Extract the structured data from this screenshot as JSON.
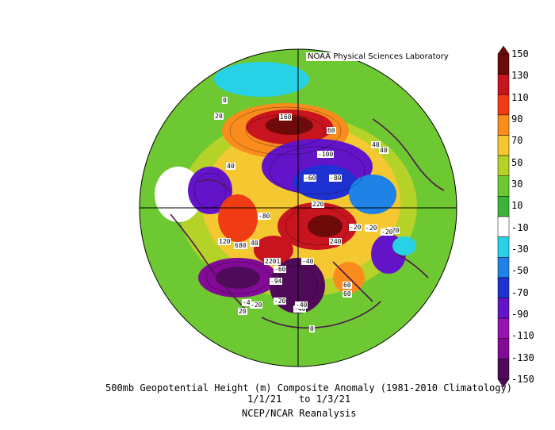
{
  "header": {
    "credit": "NOAA Physical Sciences Laboratory"
  },
  "captions": {
    "title": "500mb Geopotential Height (m) Composite Anomaly (1981-2010 Climatology)",
    "dates": "1/1/21   to 1/3/21",
    "source": "NCEP/NCAR Reanalysis"
  },
  "colorbar": {
    "labels": [
      "150",
      "130",
      "110",
      "90",
      "70",
      "50",
      "30",
      "10",
      "-10",
      "-30",
      "-50",
      "-70",
      "-90",
      "-110",
      "-130",
      "-150"
    ],
    "colors": [
      "#6e0a0a",
      "#c8141e",
      "#f03c14",
      "#fa8c1e",
      "#f5c832",
      "#b4d228",
      "#6ec832",
      "#3cb43c",
      "#ffffff",
      "#28d2e6",
      "#1e82e6",
      "#1e32d2",
      "#6414c8",
      "#9614b4",
      "#820a96",
      "#500a5a"
    ]
  },
  "map_labels": [
    "NOAA Physical Sciences Laboratory",
    "0",
    "20",
    "160",
    "60",
    "-100",
    "40",
    "40",
    "-80",
    "60",
    "-60",
    "40",
    "-20",
    "-80",
    "220",
    "-20",
    "120",
    "40",
    "80",
    "-20",
    "240",
    "-20",
    "-60",
    "2201",
    "-40",
    "60",
    "-20",
    "-94",
    "-40",
    "0",
    "60",
    "-4",
    "-20",
    "-40",
    "20",
    "-20"
  ]
}
